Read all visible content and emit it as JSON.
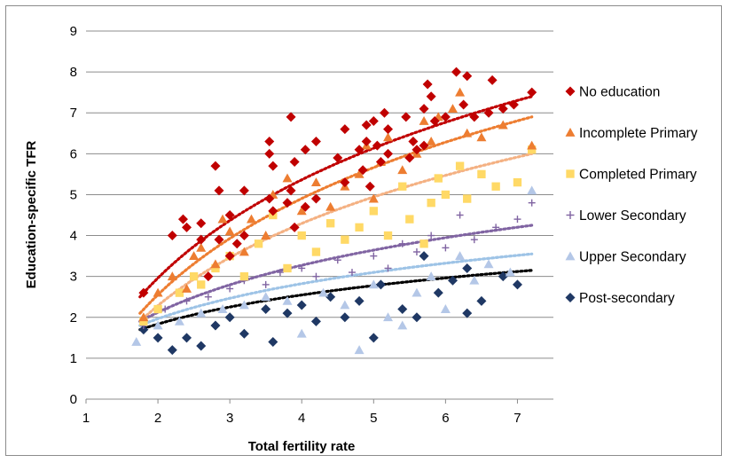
{
  "chart_data": {
    "type": "scatter",
    "title": "",
    "xlabel": "Total fertility rate",
    "ylabel": "Education-specific TFR",
    "xlim": [
      1,
      7.5
    ],
    "ylim": [
      0,
      9
    ],
    "xticks": [
      "1",
      "2",
      "3",
      "4",
      "5",
      "6",
      "7"
    ],
    "yticks": [
      "0",
      "1",
      "2",
      "3",
      "4",
      "5",
      "6",
      "7",
      "8",
      "9"
    ],
    "grid": "horizontal",
    "legend_position": "right",
    "trendline": "logarithmic, dotted",
    "series": [
      {
        "name": "No education",
        "marker": "diamond",
        "color": "#C00000",
        "trend_color": "#C00000",
        "points": [
          [
            1.8,
            2.6
          ],
          [
            2.2,
            4.0
          ],
          [
            2.35,
            4.4
          ],
          [
            2.4,
            4.2
          ],
          [
            2.6,
            4.3
          ],
          [
            2.6,
            3.9
          ],
          [
            2.7,
            3.0
          ],
          [
            2.8,
            5.7
          ],
          [
            2.85,
            5.1
          ],
          [
            2.85,
            3.9
          ],
          [
            3.0,
            4.5
          ],
          [
            3.0,
            3.5
          ],
          [
            3.1,
            3.8
          ],
          [
            3.2,
            5.1
          ],
          [
            3.2,
            4.0
          ],
          [
            3.55,
            6.3
          ],
          [
            3.55,
            6.0
          ],
          [
            3.6,
            5.7
          ],
          [
            3.55,
            4.9
          ],
          [
            3.6,
            4.6
          ],
          [
            3.8,
            4.8
          ],
          [
            3.85,
            6.9
          ],
          [
            3.85,
            5.1
          ],
          [
            3.9,
            5.8
          ],
          [
            3.9,
            4.2
          ],
          [
            4.05,
            6.1
          ],
          [
            4.05,
            4.7
          ],
          [
            4.2,
            6.3
          ],
          [
            4.2,
            4.9
          ],
          [
            4.5,
            5.9
          ],
          [
            4.6,
            6.6
          ],
          [
            4.6,
            5.3
          ],
          [
            4.8,
            6.1
          ],
          [
            4.85,
            5.6
          ],
          [
            4.9,
            6.7
          ],
          [
            4.9,
            6.3
          ],
          [
            4.95,
            5.2
          ],
          [
            5.0,
            6.8
          ],
          [
            5.05,
            6.2
          ],
          [
            5.1,
            5.8
          ],
          [
            5.15,
            7.0
          ],
          [
            5.2,
            6.6
          ],
          [
            5.2,
            6.0
          ],
          [
            5.45,
            6.9
          ],
          [
            5.5,
            5.9
          ],
          [
            5.55,
            6.3
          ],
          [
            5.6,
            6.1
          ],
          [
            5.7,
            6.2
          ],
          [
            5.7,
            7.1
          ],
          [
            5.75,
            7.7
          ],
          [
            5.8,
            7.4
          ],
          [
            5.85,
            6.8
          ],
          [
            6.0,
            6.9
          ],
          [
            6.15,
            8.0
          ],
          [
            6.25,
            7.2
          ],
          [
            6.3,
            7.9
          ],
          [
            6.4,
            6.9
          ],
          [
            6.6,
            7.0
          ],
          [
            6.65,
            7.8
          ],
          [
            6.8,
            7.1
          ],
          [
            6.95,
            7.2
          ],
          [
            7.2,
            7.5
          ]
        ],
        "trend": [
          [
            1.75,
            2.5
          ],
          [
            7.2,
            7.4
          ]
        ]
      },
      {
        "name": "Incomplete Primary",
        "marker": "triangle",
        "color": "#ED7D31",
        "trend_color": "#ED7D31",
        "points": [
          [
            1.8,
            2.0
          ],
          [
            2.0,
            2.6
          ],
          [
            2.2,
            3.0
          ],
          [
            2.4,
            2.7
          ],
          [
            2.5,
            3.5
          ],
          [
            2.6,
            3.7
          ],
          [
            2.8,
            3.3
          ],
          [
            2.9,
            4.4
          ],
          [
            3.0,
            4.1
          ],
          [
            3.2,
            3.6
          ],
          [
            3.3,
            4.4
          ],
          [
            3.5,
            4.0
          ],
          [
            3.6,
            5.0
          ],
          [
            3.8,
            5.4
          ],
          [
            4.0,
            4.6
          ],
          [
            4.2,
            5.3
          ],
          [
            4.4,
            4.7
          ],
          [
            4.6,
            5.2
          ],
          [
            4.8,
            5.5
          ],
          [
            4.9,
            6.2
          ],
          [
            5.0,
            4.9
          ],
          [
            5.1,
            5.8
          ],
          [
            5.2,
            6.4
          ],
          [
            5.4,
            5.6
          ],
          [
            5.6,
            6.0
          ],
          [
            5.7,
            6.8
          ],
          [
            5.8,
            6.3
          ],
          [
            5.9,
            6.9
          ],
          [
            6.1,
            7.1
          ],
          [
            6.2,
            7.5
          ],
          [
            6.3,
            6.5
          ],
          [
            6.5,
            6.4
          ],
          [
            6.8,
            6.7
          ],
          [
            7.2,
            6.2
          ]
        ],
        "trend": [
          [
            1.75,
            2.1
          ],
          [
            7.2,
            6.9
          ]
        ]
      },
      {
        "name": "Completed Primary",
        "marker": "square",
        "color": "#FFD966",
        "trend_color": "#F4B183",
        "points": [
          [
            1.8,
            1.9
          ],
          [
            2.0,
            2.2
          ],
          [
            2.3,
            2.6
          ],
          [
            2.5,
            3.0
          ],
          [
            2.6,
            2.8
          ],
          [
            2.8,
            3.2
          ],
          [
            3.0,
            3.5
          ],
          [
            3.2,
            3.0
          ],
          [
            3.4,
            3.8
          ],
          [
            3.6,
            4.5
          ],
          [
            3.8,
            3.2
          ],
          [
            4.0,
            4.0
          ],
          [
            4.2,
            3.6
          ],
          [
            4.4,
            4.3
          ],
          [
            4.6,
            3.9
          ],
          [
            4.8,
            4.2
          ],
          [
            5.0,
            4.6
          ],
          [
            5.2,
            4.0
          ],
          [
            5.4,
            5.2
          ],
          [
            5.5,
            4.4
          ],
          [
            5.7,
            3.8
          ],
          [
            5.8,
            4.8
          ],
          [
            5.9,
            5.4
          ],
          [
            6.0,
            5.0
          ],
          [
            6.2,
            5.7
          ],
          [
            6.3,
            4.9
          ],
          [
            6.5,
            5.5
          ],
          [
            6.7,
            5.2
          ],
          [
            7.0,
            5.3
          ],
          [
            7.2,
            6.1
          ]
        ],
        "trend": [
          [
            1.75,
            1.9
          ],
          [
            7.2,
            6.0
          ]
        ]
      },
      {
        "name": "Lower Secondary",
        "marker": "plus",
        "color": "#8064A2",
        "trend_color": "#8064A2",
        "points": [
          [
            1.8,
            1.8
          ],
          [
            2.1,
            2.2
          ],
          [
            2.4,
            2.4
          ],
          [
            2.7,
            2.5
          ],
          [
            3.0,
            2.7
          ],
          [
            3.2,
            2.9
          ],
          [
            3.5,
            2.8
          ],
          [
            3.7,
            3.1
          ],
          [
            4.0,
            3.2
          ],
          [
            4.2,
            3.0
          ],
          [
            4.5,
            3.4
          ],
          [
            4.7,
            3.1
          ],
          [
            5.0,
            3.5
          ],
          [
            5.2,
            3.2
          ],
          [
            5.4,
            3.8
          ],
          [
            5.6,
            3.6
          ],
          [
            5.8,
            4.0
          ],
          [
            6.0,
            3.7
          ],
          [
            6.2,
            4.5
          ],
          [
            6.4,
            3.9
          ],
          [
            6.7,
            4.2
          ],
          [
            7.0,
            4.4
          ],
          [
            7.2,
            4.8
          ]
        ],
        "trend": [
          [
            1.75,
            1.9
          ],
          [
            7.2,
            4.25
          ]
        ]
      },
      {
        "name": "Upper Secondary",
        "marker": "triangle",
        "color": "#B4C7E7",
        "trend_color": "#9DC3E6",
        "points": [
          [
            1.7,
            1.4
          ],
          [
            2.0,
            1.8
          ],
          [
            2.3,
            1.9
          ],
          [
            2.6,
            2.1
          ],
          [
            2.9,
            2.2
          ],
          [
            3.2,
            2.3
          ],
          [
            3.5,
            2.5
          ],
          [
            3.8,
            2.4
          ],
          [
            4.0,
            1.6
          ],
          [
            4.3,
            2.6
          ],
          [
            4.6,
            2.3
          ],
          [
            4.8,
            1.2
          ],
          [
            5.0,
            2.8
          ],
          [
            5.2,
            2.0
          ],
          [
            5.4,
            1.8
          ],
          [
            5.6,
            2.6
          ],
          [
            5.8,
            3.0
          ],
          [
            6.0,
            2.2
          ],
          [
            6.2,
            3.5
          ],
          [
            6.4,
            2.9
          ],
          [
            6.6,
            3.3
          ],
          [
            6.9,
            3.1
          ],
          [
            7.2,
            5.1
          ]
        ],
        "trend": [
          [
            1.75,
            1.8
          ],
          [
            7.2,
            3.55
          ]
        ]
      },
      {
        "name": "Post-secondary",
        "marker": "diamond",
        "color": "#1F3864",
        "trend_color": "#000000",
        "points": [
          [
            1.8,
            1.7
          ],
          [
            2.0,
            1.5
          ],
          [
            2.2,
            1.2
          ],
          [
            2.4,
            1.5
          ],
          [
            2.6,
            1.3
          ],
          [
            2.8,
            1.8
          ],
          [
            3.0,
            2.0
          ],
          [
            3.2,
            1.6
          ],
          [
            3.5,
            2.2
          ],
          [
            3.6,
            1.4
          ],
          [
            3.8,
            2.1
          ],
          [
            4.0,
            2.3
          ],
          [
            4.2,
            1.9
          ],
          [
            4.4,
            2.5
          ],
          [
            4.6,
            2.0
          ],
          [
            4.8,
            2.4
          ],
          [
            5.0,
            1.5
          ],
          [
            5.1,
            2.8
          ],
          [
            5.4,
            2.2
          ],
          [
            5.6,
            2.0
          ],
          [
            5.7,
            3.5
          ],
          [
            5.9,
            2.6
          ],
          [
            6.1,
            2.9
          ],
          [
            6.3,
            3.2
          ],
          [
            6.3,
            2.1
          ],
          [
            6.5,
            2.4
          ],
          [
            6.8,
            3.0
          ],
          [
            7.0,
            2.8
          ]
        ],
        "trend": [
          [
            1.75,
            1.7
          ],
          [
            7.2,
            3.15
          ]
        ]
      }
    ]
  }
}
